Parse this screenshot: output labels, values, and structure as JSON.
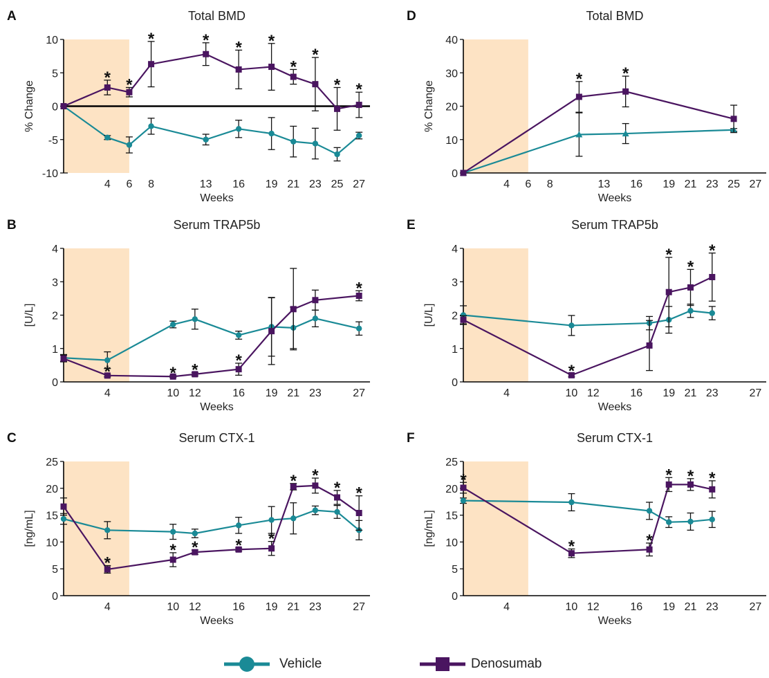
{
  "colors": {
    "vehicle": "#1a8a96",
    "denosumab": "#4a1560",
    "shade": "#fde3c4",
    "axis": "#000000",
    "text": "#222222"
  },
  "legend": {
    "vehicle_label": "Vehicle",
    "denosumab_label": "Denosumab"
  },
  "chart_data": [
    {
      "panel_letter": "A",
      "type": "line",
      "title": "Total BMD",
      "xlabel": "Weeks",
      "ylabel": "% Change",
      "xlim": [
        0,
        28
      ],
      "ylim": [
        -10,
        10
      ],
      "x_ticks": [
        4,
        6,
        8,
        13,
        16,
        19,
        21,
        23,
        25,
        27
      ],
      "y_ticks": [
        -10,
        -5,
        0,
        5,
        10
      ],
      "shaded_x": [
        0,
        6
      ],
      "zero_line": true,
      "series": [
        {
          "name": "Vehicle",
          "marker": "circle",
          "points": [
            {
              "x": 0,
              "y": 0,
              "err": 0
            },
            {
              "x": 4,
              "y": -4.7,
              "err": 0.3
            },
            {
              "x": 6,
              "y": -5.8,
              "err": 1.2
            },
            {
              "x": 8,
              "y": -3.0,
              "err": 1.2
            },
            {
              "x": 13,
              "y": -5.0,
              "err": 0.8
            },
            {
              "x": 16,
              "y": -3.4,
              "err": 1.3
            },
            {
              "x": 19,
              "y": -4.1,
              "err": 2.4
            },
            {
              "x": 21,
              "y": -5.3,
              "err": 2.3
            },
            {
              "x": 23,
              "y": -5.6,
              "err": 2.3
            },
            {
              "x": 25,
              "y": -7.2,
              "err": 1.0
            },
            {
              "x": 27,
              "y": -4.4,
              "err": 0.5
            }
          ]
        },
        {
          "name": "Denosumab",
          "marker": "square",
          "points": [
            {
              "x": 0,
              "y": 0,
              "err": 0
            },
            {
              "x": 4,
              "y": 2.8,
              "err": 1.1,
              "star": true
            },
            {
              "x": 6,
              "y": 2.1,
              "err": 0.7,
              "star": true
            },
            {
              "x": 8,
              "y": 6.3,
              "err": 3.4,
              "star": true
            },
            {
              "x": 13,
              "y": 7.8,
              "err": 1.7,
              "star": true
            },
            {
              "x": 16,
              "y": 5.5,
              "err": 2.9,
              "star": true
            },
            {
              "x": 19,
              "y": 5.9,
              "err": 3.5,
              "star": true
            },
            {
              "x": 21,
              "y": 4.4,
              "err": 1.1,
              "star": true
            },
            {
              "x": 23,
              "y": 3.3,
              "err": 4.0,
              "star": true
            },
            {
              "x": 25,
              "y": -0.4,
              "err": 3.2,
              "star": true
            },
            {
              "x": 27,
              "y": 0.2,
              "err": 1.9,
              "star": true
            }
          ]
        }
      ]
    },
    {
      "panel_letter": "B",
      "type": "line",
      "title": "Serum TRAP5b",
      "xlabel": "Weeks",
      "ylabel": "[U/L]",
      "xlim": [
        0,
        28
      ],
      "ylim": [
        0,
        4
      ],
      "x_ticks": [
        4,
        10,
        12,
        16,
        19,
        21,
        23,
        27
      ],
      "y_ticks": [
        0,
        1,
        2,
        3,
        4
      ],
      "shaded_x": [
        0,
        6
      ],
      "zero_line": false,
      "series": [
        {
          "name": "Vehicle",
          "marker": "circle",
          "points": [
            {
              "x": 0,
              "y": 0.72,
              "err": 0.1
            },
            {
              "x": 4,
              "y": 0.65,
              "err": 0.25
            },
            {
              "x": 10,
              "y": 1.72,
              "err": 0.1
            },
            {
              "x": 12,
              "y": 1.88,
              "err": 0.3
            },
            {
              "x": 16,
              "y": 1.4,
              "err": 0.12
            },
            {
              "x": 19,
              "y": 1.65,
              "err": 0.88
            },
            {
              "x": 21,
              "y": 1.62,
              "err": 0.62
            },
            {
              "x": 23,
              "y": 1.9,
              "err": 0.25
            },
            {
              "x": 27,
              "y": 1.6,
              "err": 0.2
            }
          ]
        },
        {
          "name": "Denosumab",
          "marker": "square",
          "points": [
            {
              "x": 0,
              "y": 0.7,
              "err": 0.1
            },
            {
              "x": 4,
              "y": 0.19,
              "err": 0.04,
              "star": true
            },
            {
              "x": 10,
              "y": 0.16,
              "err": 0.03,
              "star": true
            },
            {
              "x": 12,
              "y": 0.23,
              "err": 0.05,
              "star": true
            },
            {
              "x": 16,
              "y": 0.38,
              "err": 0.18,
              "star": true
            },
            {
              "x": 19,
              "y": 1.52,
              "err": 1.0
            },
            {
              "x": 21,
              "y": 2.18,
              "err": 1.22
            },
            {
              "x": 23,
              "y": 2.45,
              "err": 0.3
            },
            {
              "x": 27,
              "y": 2.58,
              "err": 0.15,
              "star": true
            }
          ]
        }
      ]
    },
    {
      "panel_letter": "C",
      "type": "line",
      "title": "Serum CTX-1",
      "xlabel": "Weeks",
      "ylabel": "[ng/mL]",
      "xlim": [
        0,
        28
      ],
      "ylim": [
        0,
        25
      ],
      "x_ticks": [
        4,
        10,
        12,
        16,
        19,
        21,
        23,
        27
      ],
      "y_ticks": [
        0,
        5,
        10,
        15,
        20,
        25
      ],
      "shaded_x": [
        0,
        6
      ],
      "zero_line": false,
      "series": [
        {
          "name": "Vehicle",
          "marker": "circle",
          "points": [
            {
              "x": 0,
              "y": 14.3,
              "err": 1.0
            },
            {
              "x": 4,
              "y": 12.2,
              "err": 1.6
            },
            {
              "x": 10,
              "y": 11.9,
              "err": 1.4
            },
            {
              "x": 12,
              "y": 11.6,
              "err": 0.8
            },
            {
              "x": 16,
              "y": 13.1,
              "err": 1.5
            },
            {
              "x": 19,
              "y": 14.1,
              "err": 2.5
            },
            {
              "x": 21,
              "y": 14.4,
              "err": 2.9
            },
            {
              "x": 23,
              "y": 15.9,
              "err": 0.8
            },
            {
              "x": 25,
              "y": 15.6,
              "err": 1.2
            },
            {
              "x": 27,
              "y": 12.2,
              "err": 1.8
            }
          ]
        },
        {
          "name": "Denosumab",
          "marker": "square",
          "points": [
            {
              "x": 0,
              "y": 16.6,
              "err": 1.6
            },
            {
              "x": 4,
              "y": 4.9,
              "err": 0.7,
              "star": true
            },
            {
              "x": 10,
              "y": 6.7,
              "err": 1.3,
              "star": true
            },
            {
              "x": 12,
              "y": 8.1,
              "err": 0.4,
              "star": true
            },
            {
              "x": 16,
              "y": 8.6,
              "err": 0.3,
              "star": true
            },
            {
              "x": 19,
              "y": 8.8,
              "err": 1.3,
              "star": true
            },
            {
              "x": 21,
              "y": 20.3,
              "err": 0.6,
              "star": true
            },
            {
              "x": 23,
              "y": 20.5,
              "err": 1.4,
              "star": true
            },
            {
              "x": 25,
              "y": 18.3,
              "err": 1.3,
              "star": true
            },
            {
              "x": 27,
              "y": 15.4,
              "err": 3.2,
              "star": true
            }
          ]
        }
      ]
    },
    {
      "panel_letter": "D",
      "type": "line",
      "title": "Total BMD",
      "xlabel": "Weeks",
      "ylabel": "% Change",
      "xlim": [
        0,
        28
      ],
      "ylim": [
        0,
        40
      ],
      "x_ticks": [
        4,
        6,
        8,
        13,
        16,
        19,
        21,
        23,
        25,
        27
      ],
      "y_ticks": [
        0,
        10,
        20,
        30,
        40
      ],
      "shaded_x": [
        0,
        6
      ],
      "zero_line": false,
      "series": [
        {
          "name": "Vehicle",
          "marker": "triangle",
          "points": [
            {
              "x": 0,
              "y": 0,
              "err": 0
            },
            {
              "x": 10.7,
              "y": 11.5,
              "err": 6.5
            },
            {
              "x": 15,
              "y": 11.8,
              "err": 3.0
            },
            {
              "x": 25,
              "y": 12.9,
              "err": 0.4
            }
          ]
        },
        {
          "name": "Denosumab",
          "marker": "square",
          "points": [
            {
              "x": 0,
              "y": 0,
              "err": 0
            },
            {
              "x": 10.7,
              "y": 22.8,
              "err": 4.6,
              "star": true
            },
            {
              "x": 15,
              "y": 24.4,
              "err": 4.6,
              "star": true
            },
            {
              "x": 25,
              "y": 16.2,
              "err": 4.1
            }
          ]
        }
      ]
    },
    {
      "panel_letter": "E",
      "type": "line",
      "title": "Serum TRAP5b",
      "xlabel": "Weeks",
      "ylabel": "[U/L]",
      "xlim": [
        0,
        28
      ],
      "ylim": [
        0,
        4
      ],
      "x_ticks": [
        4,
        10,
        12,
        16,
        19,
        21,
        23,
        27
      ],
      "y_ticks": [
        0,
        1,
        2,
        3,
        4
      ],
      "shaded_x": [
        0,
        6
      ],
      "zero_line": false,
      "series": [
        {
          "name": "Vehicle",
          "marker": "circle",
          "points": [
            {
              "x": 0,
              "y": 2.0,
              "err": 0.28
            },
            {
              "x": 10,
              "y": 1.69,
              "err": 0.3
            },
            {
              "x": 17.2,
              "y": 1.76,
              "err": 0.2
            },
            {
              "x": 19,
              "y": 1.86,
              "err": 0.4
            },
            {
              "x": 21,
              "y": 2.13,
              "err": 0.2
            },
            {
              "x": 23,
              "y": 2.06,
              "err": 0.2
            }
          ]
        },
        {
          "name": "Denosumab",
          "marker": "square",
          "points": [
            {
              "x": 0,
              "y": 1.86,
              "err": 0.12
            },
            {
              "x": 10,
              "y": 0.2,
              "err": 0.05,
              "star": true
            },
            {
              "x": 17.2,
              "y": 1.09,
              "err": 0.75
            },
            {
              "x": 19,
              "y": 2.69,
              "err": 1.04,
              "star": true
            },
            {
              "x": 21,
              "y": 2.83,
              "err": 0.54,
              "star": true
            },
            {
              "x": 23,
              "y": 3.14,
              "err": 0.72,
              "star": true
            }
          ]
        }
      ]
    },
    {
      "panel_letter": "F",
      "type": "line",
      "title": "Serum CTX-1",
      "xlabel": "Weeks",
      "ylabel": "[ng/mL]",
      "xlim": [
        0,
        28
      ],
      "ylim": [
        0,
        25
      ],
      "x_ticks": [
        4,
        10,
        12,
        16,
        19,
        21,
        23,
        27
      ],
      "y_ticks": [
        0,
        5,
        10,
        15,
        20,
        25
      ],
      "shaded_x": [
        0,
        6
      ],
      "zero_line": false,
      "series": [
        {
          "name": "Vehicle",
          "marker": "circle",
          "points": [
            {
              "x": 0,
              "y": 17.7,
              "err": 0.5
            },
            {
              "x": 10,
              "y": 17.4,
              "err": 1.6
            },
            {
              "x": 17.2,
              "y": 15.8,
              "err": 1.6
            },
            {
              "x": 19,
              "y": 13.7,
              "err": 1.0
            },
            {
              "x": 21,
              "y": 13.8,
              "err": 1.6
            },
            {
              "x": 23,
              "y": 14.2,
              "err": 1.5
            }
          ]
        },
        {
          "name": "Denosumab",
          "marker": "square",
          "points": [
            {
              "x": 0,
              "y": 20.1,
              "err": 1.0,
              "star": true
            },
            {
              "x": 10,
              "y": 7.9,
              "err": 0.8,
              "star": true
            },
            {
              "x": 17.2,
              "y": 8.6,
              "err": 1.2,
              "star": true
            },
            {
              "x": 19,
              "y": 20.7,
              "err": 1.3,
              "star": true
            },
            {
              "x": 21,
              "y": 20.7,
              "err": 1.1,
              "star": true
            },
            {
              "x": 23,
              "y": 19.8,
              "err": 1.6,
              "star": true
            }
          ]
        }
      ]
    }
  ]
}
